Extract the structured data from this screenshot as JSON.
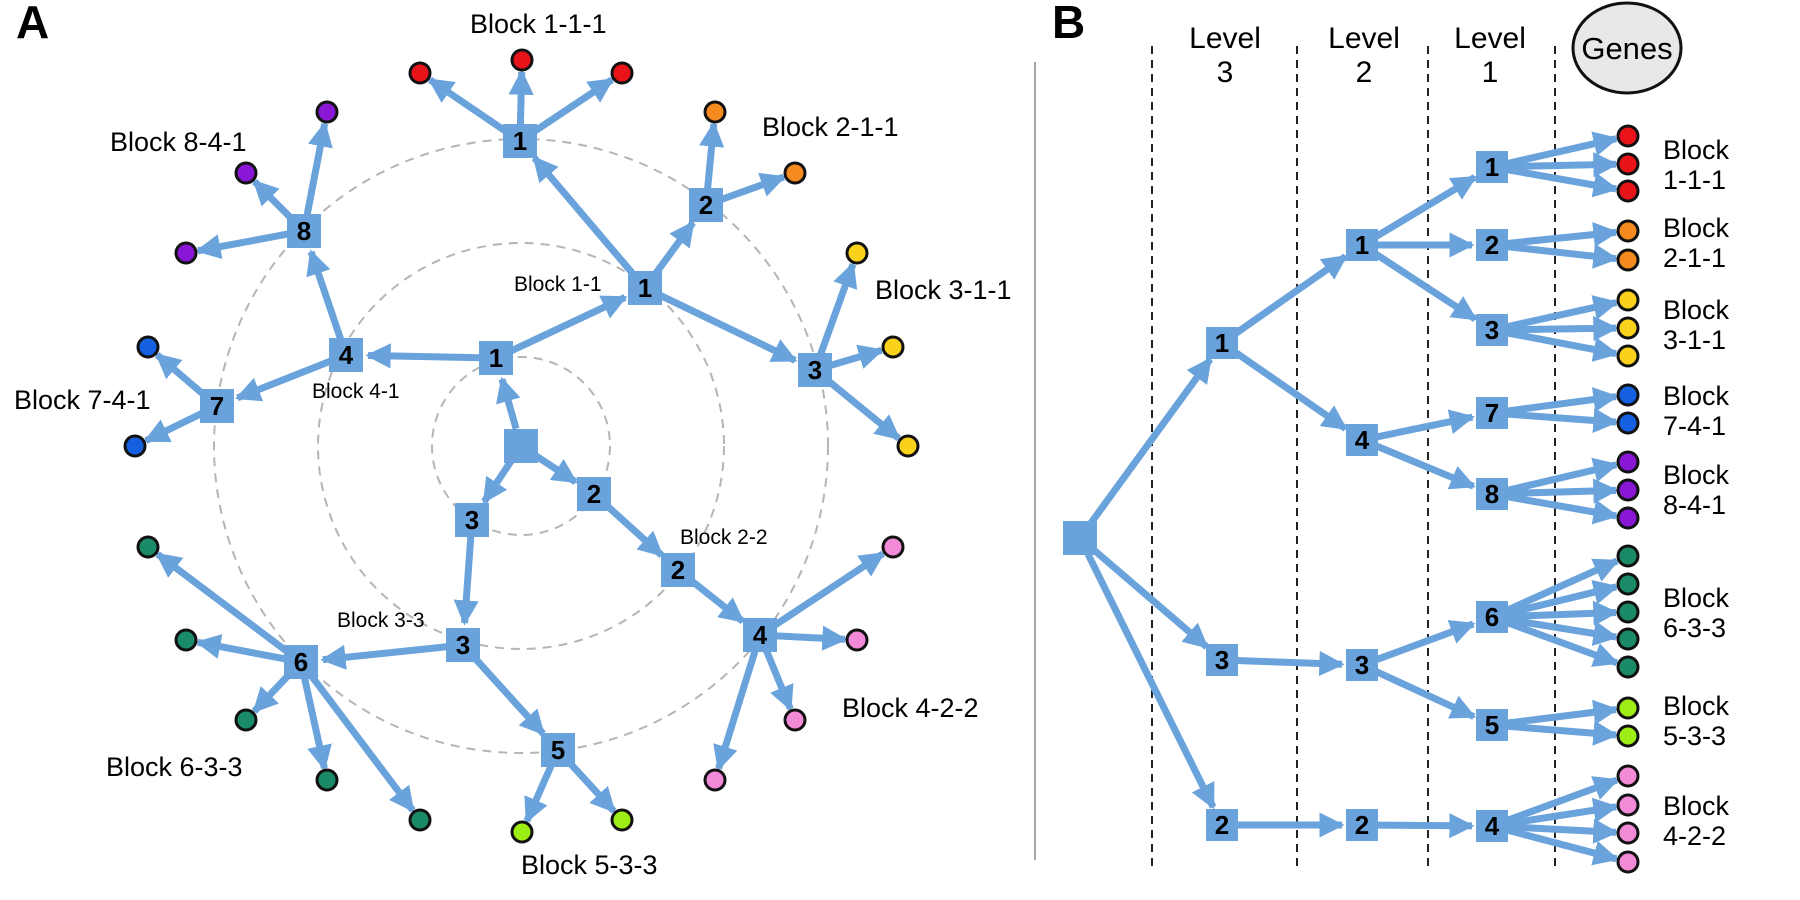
{
  "panels": {
    "a": "A",
    "b": "B"
  },
  "colors": {
    "edge": "#6aa3dc",
    "node": "#6aa3dc",
    "ring": "#b5b5b5",
    "gene_outline": "#111111",
    "red": "#e8141a",
    "orange": "#f58a1f",
    "yellow": "#fbd21b",
    "blue": "#1560e0",
    "purple": "#8a16d6",
    "teal": "#1a8a68",
    "pink": "#f38ad8",
    "lime": "#9cee14"
  },
  "panel_a": {
    "block_labels": {
      "b111": "Block 1-1-1",
      "b211": "Block 2-1-1",
      "b311": "Block 3-1-1",
      "b841": "Block 8-4-1",
      "b741": "Block 7-4-1",
      "b633": "Block 6-3-3",
      "b533": "Block 5-3-3",
      "b422": "Block 4-2-2"
    },
    "small_labels": {
      "b11": "Block 1-1",
      "b41": "Block 4-1",
      "b22": "Block 2-2",
      "b33": "Block 3-3"
    },
    "nodes": {
      "l3_1": "1",
      "l3_2": "2",
      "l3_3": "3",
      "l2_1": "1",
      "l2_4": "4",
      "l2_2": "2",
      "l2_3": "3",
      "l1_1": "1",
      "l1_2": "2",
      "l1_3": "3",
      "l1_8": "8",
      "l1_7": "7",
      "l1_4": "4",
      "l1_5": "5",
      "l1_6": "6"
    }
  },
  "panel_b": {
    "levels": {
      "l3": [
        "Level",
        "3"
      ],
      "l2": [
        "Level",
        "2"
      ],
      "l1": [
        "Level",
        "1"
      ]
    },
    "genes": "Genes",
    "nodes": {
      "l3_1": "1",
      "l3_3": "3",
      "l3_2": "2",
      "l2_1": "1",
      "l2_4": "4",
      "l2_3": "3",
      "l2_2": "2",
      "l1_1": "1",
      "l1_2": "2",
      "l1_3": "3",
      "l1_7": "7",
      "l1_8": "8",
      "l1_6": "6",
      "l1_5": "5",
      "l1_4": "4"
    },
    "blocks": [
      {
        "line1": "Block",
        "line2": "1-1-1",
        "color": "red",
        "genes": 3
      },
      {
        "line1": "Block",
        "line2": "2-1-1",
        "color": "orange",
        "genes": 2
      },
      {
        "line1": "Block",
        "line2": "3-1-1",
        "color": "yellow",
        "genes": 3
      },
      {
        "line1": "Block",
        "line2": "7-4-1",
        "color": "blue",
        "genes": 2
      },
      {
        "line1": "Block",
        "line2": "8-4-1",
        "color": "purple",
        "genes": 3
      },
      {
        "line1": "Block",
        "line2": "6-3-3",
        "color": "teal",
        "genes": 5
      },
      {
        "line1": "Block",
        "line2": "5-3-3",
        "color": "lime",
        "genes": 2
      },
      {
        "line1": "Block",
        "line2": "4-2-2",
        "color": "pink",
        "genes": 4
      }
    ]
  }
}
